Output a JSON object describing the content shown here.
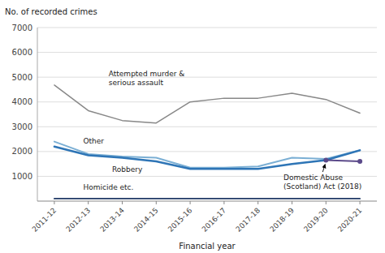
{
  "chart_data": {
    "type": "line",
    "y_label": "No. of recorded crimes",
    "x_label": "Financial year",
    "categories": [
      "2011-12",
      "2012-13",
      "2013-14",
      "2014-15",
      "2015-16",
      "2016-17",
      "2017-18",
      "2018-19",
      "2019-20",
      "2020-21"
    ],
    "series": [
      {
        "name": "Attempted murder &\nserious assault",
        "color": "#888888",
        "values": [
          4680,
          3650,
          3250,
          3150,
          4000,
          4150,
          4150,
          4350,
          4100,
          3550
        ]
      },
      {
        "name": "Other",
        "color": "#7BAFD4",
        "values": [
          2400,
          1900,
          1800,
          1750,
          1350,
          1350,
          1400,
          1750,
          1700,
          2050
        ]
      },
      {
        "name": "Robbery",
        "color": "#2E75B6",
        "values": [
          2200,
          1850,
          1750,
          1600,
          1300,
          1300,
          1300,
          1500,
          1650,
          2050
        ]
      },
      {
        "name": "Homicide etc.",
        "color": "#1F3864",
        "values": [
          100,
          100,
          100,
          100,
          100,
          100,
          100,
          100,
          100,
          100
        ]
      },
      {
        "name": "Domestic Abuse\n(Scotland) Act (2018)",
        "color": "#5B4A8A",
        "marker": "circle",
        "values": [
          null,
          null,
          null,
          null,
          null,
          null,
          null,
          null,
          1650,
          1600
        ]
      }
    ],
    "ylim": [
      0,
      7000
    ],
    "yticks": [
      1000,
      2000,
      3000,
      4000,
      5000,
      6000,
      7000
    ],
    "grid": true
  }
}
